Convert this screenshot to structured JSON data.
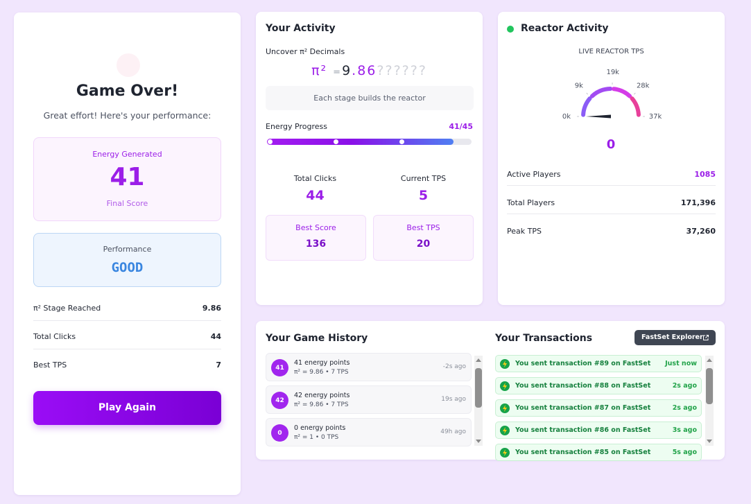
{
  "game_over": {
    "title": "Game Over!",
    "subtitle": "Great effort! Here's your performance:",
    "energy": {
      "label": "Energy Generated",
      "value": 41,
      "caption": "Final Score"
    },
    "performance": {
      "label": "Performance",
      "value": "GOOD"
    },
    "stats": [
      {
        "label": "π² Stage Reached",
        "value": 9.86
      },
      {
        "label": "Total Clicks",
        "value": 44
      },
      {
        "label": "Best TPS",
        "value": 7
      }
    ],
    "button": "Play Again"
  },
  "activity": {
    "title": "Your Activity",
    "pi_label": "Uncover π² Decimals",
    "pi": {
      "symbol": "π²",
      "equals": "=",
      "integer": "9",
      "dot": ".",
      "revealed": "86",
      "hidden": "??????"
    },
    "hint": "Each stage builds the reactor",
    "progress": {
      "label": "Energy Progress",
      "text": "41/45",
      "value": 41,
      "max": 45
    },
    "stats": [
      {
        "label": "Total Clicks",
        "value": 44
      },
      {
        "label": "Current TPS",
        "value": 5
      }
    ],
    "bests": [
      {
        "label": "Best Score",
        "value": 136
      },
      {
        "label": "Best TPS",
        "value": 20
      }
    ]
  },
  "reactor": {
    "title": "Reactor Activity",
    "gauge_label": "LIVE REACTOR TPS",
    "gauge_ticks": [
      {
        "value": 0,
        "label": "0k"
      },
      {
        "value": 9000,
        "label": "9k"
      },
      {
        "value": 19000,
        "label": "19k"
      },
      {
        "value": 28000,
        "label": "28k"
      },
      {
        "value": 37000,
        "label": "37k"
      }
    ],
    "gauge_value": 0,
    "rows": [
      {
        "label": "Active Players",
        "value": 1085
      },
      {
        "label": "Total Players",
        "value": "171,396"
      },
      {
        "label": "Peak TPS",
        "value": "37,260"
      }
    ]
  },
  "history": {
    "title": "Your Game History",
    "items": [
      {
        "badge": 41,
        "title": "41 energy points",
        "detail": "π² = 9.86 • 7 TPS",
        "time": "-2s ago"
      },
      {
        "badge": 42,
        "title": "42 energy points",
        "detail": "π² = 9.86 • 7 TPS",
        "time": "19s ago"
      },
      {
        "badge": 0,
        "title": "0 energy points",
        "detail": "π² = 1 • 0 TPS",
        "time": "49h ago"
      }
    ]
  },
  "transactions": {
    "title": "Your Transactions",
    "button": "FastSet Explorer",
    "items": [
      {
        "text": "You sent transaction #89 on FastSet",
        "time": "Just now"
      },
      {
        "text": "You sent transaction #88 on FastSet",
        "time": "2s ago"
      },
      {
        "text": "You sent transaction #87 on FastSet",
        "time": "2s ago"
      },
      {
        "text": "You sent transaction #86 on FastSet",
        "time": "3s ago"
      },
      {
        "text": "You sent transaction #85 on FastSet",
        "time": "5s ago"
      }
    ]
  }
}
